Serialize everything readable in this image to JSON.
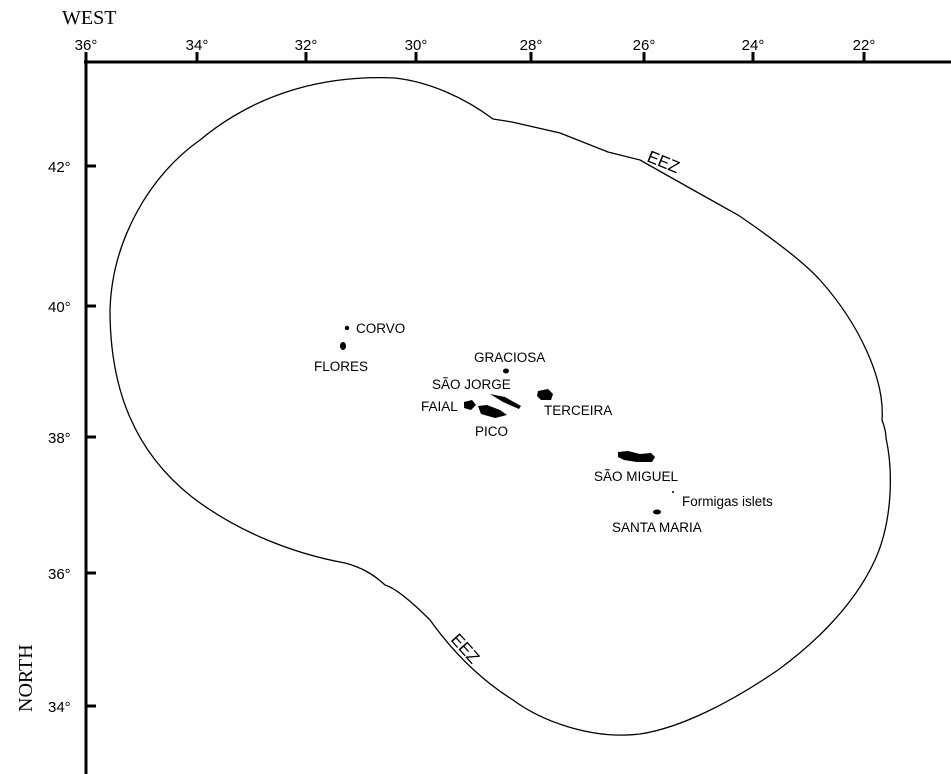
{
  "map": {
    "top_axis_title": "WEST",
    "left_axis_title": "NORTH",
    "longitude_ticks": [
      "36°",
      "34°",
      "32°",
      "30°",
      "28°",
      "26°",
      "24°",
      "22°"
    ],
    "latitude_ticks": [
      "42°",
      "40°",
      "38°",
      "36°",
      "34°"
    ],
    "eez_labels": [
      "EEZ",
      "EEZ"
    ],
    "islands": {
      "corvo": "CORVO",
      "flores": "FLORES",
      "graciosa": "GRACIOSA",
      "sao_jorge": "SÃO JORGE",
      "faial": "FAIAL",
      "terceira": "TERCEIRA",
      "pico": "PICO",
      "sao_miguel": "SÃO MIGUEL",
      "formigas": "Formigas islets",
      "santa_maria": "SANTA MARIA"
    }
  },
  "colors": {
    "ink": "#000000",
    "background": "#ffffff"
  }
}
